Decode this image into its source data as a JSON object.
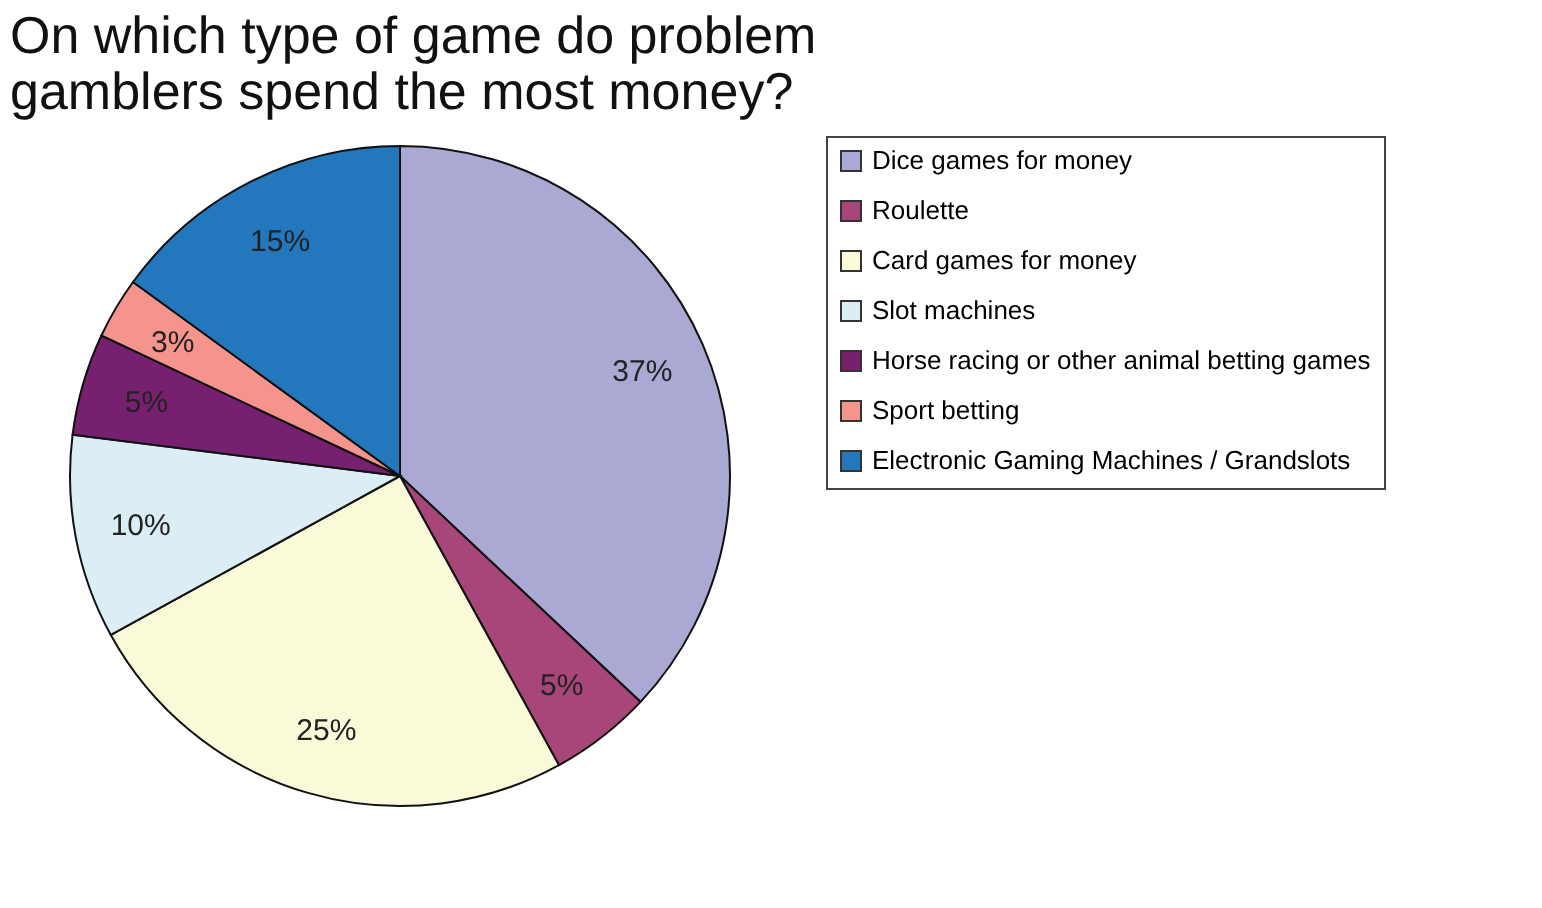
{
  "chart_data": {
    "type": "pie",
    "title": [
      "On which type of game do problem",
      "gamblers spend the most money?"
    ],
    "categories": [
      "Dice games for money",
      "Roulette",
      "Card games for money",
      "Slot machines",
      "Horse racing or other animal betting games",
      "Sport betting",
      "Electronic Gaming Machines / Grandslots"
    ],
    "values": [
      37,
      5,
      25,
      10,
      5,
      3,
      15
    ],
    "colors": [
      "#a9a9d4",
      "#a8467a",
      "#fafad8",
      "#dbeef5",
      "#77206f",
      "#f4948d",
      "#2377bd"
    ],
    "value_labels": [
      "37%",
      "5%",
      "25%",
      "10%",
      "5%",
      "3%",
      "15%"
    ],
    "legend": "right"
  }
}
